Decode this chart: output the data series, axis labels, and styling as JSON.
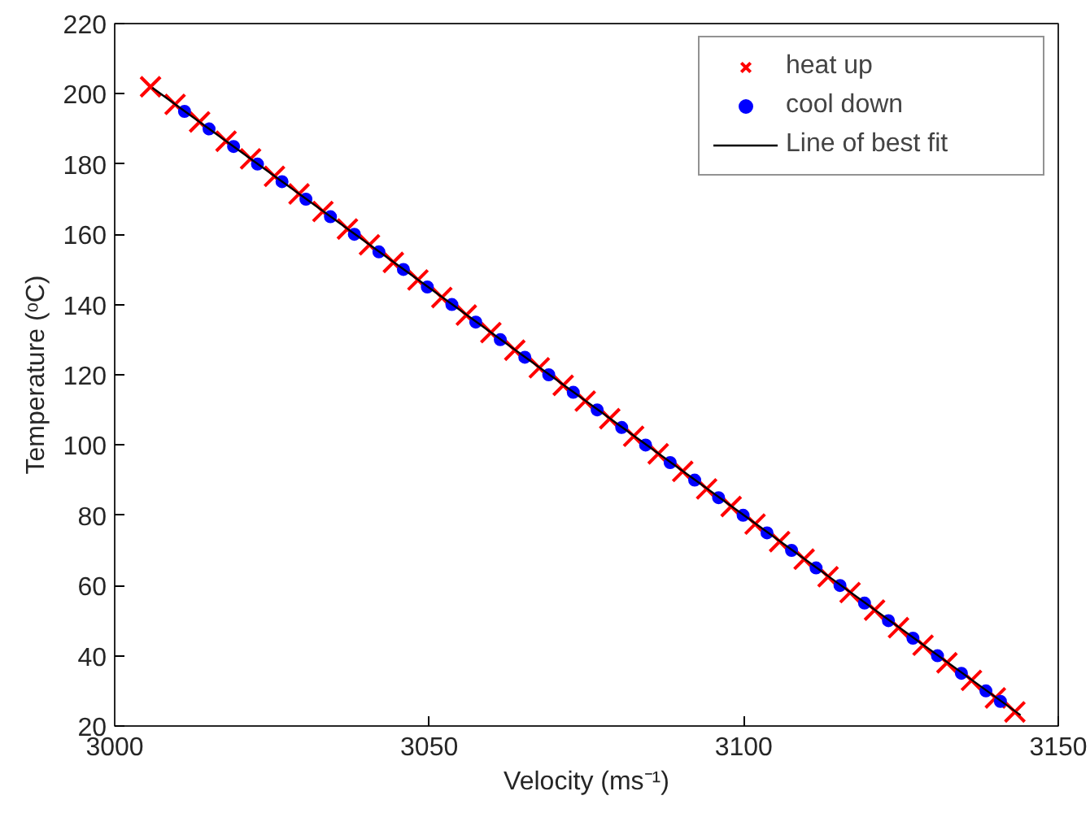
{
  "chart_data": {
    "type": "scatter",
    "xlabel": "Velocity (ms⁻¹)",
    "ylabel": "Temperature (ᵒC)",
    "xlim": [
      3000,
      3150
    ],
    "ylim": [
      20,
      220
    ],
    "xticks": [
      3000,
      3050,
      3100,
      3150
    ],
    "yticks": [
      20,
      40,
      60,
      80,
      100,
      120,
      140,
      160,
      180,
      200,
      220
    ],
    "grid": false,
    "legend": "top right",
    "series": [
      {
        "name": "heat up",
        "color": "#ff0000",
        "marker": "cross",
        "x": [
          3005.7,
          3009.6,
          3013.5,
          3017.7,
          3021.6,
          3025.4,
          3029.3,
          3033.1,
          3037.0,
          3040.5,
          3044.3,
          3048.2,
          3052.0,
          3055.9,
          3059.8,
          3063.6,
          3067.5,
          3071.3,
          3074.8,
          3078.7,
          3082.5,
          3086.4,
          3090.3,
          3094.1,
          3098.0,
          3101.8,
          3105.7,
          3109.6,
          3113.4,
          3116.9,
          3120.8,
          3124.6,
          3128.5,
          3132.3,
          3136.2,
          3140.0,
          3143.1
        ],
        "values": [
          202,
          197,
          192,
          186.5,
          181.5,
          176.5,
          171.5,
          166.5,
          161.5,
          157,
          152,
          147,
          142,
          137,
          132,
          127,
          122,
          117,
          112.5,
          107.5,
          102.5,
          97.5,
          92.5,
          87.5,
          82.5,
          77.5,
          72.5,
          67.5,
          62.5,
          58,
          53,
          48,
          43,
          38,
          33,
          28,
          24
        ]
      },
      {
        "name": "cool down",
        "color": "#0000ff",
        "marker": "circle",
        "x": [
          3011.1,
          3015.0,
          3018.9,
          3022.7,
          3026.6,
          3030.4,
          3034.3,
          3038.1,
          3042.0,
          3045.9,
          3049.7,
          3053.6,
          3057.4,
          3061.3,
          3065.2,
          3069.0,
          3072.9,
          3076.7,
          3080.6,
          3084.4,
          3088.3,
          3092.2,
          3096.0,
          3099.9,
          3103.7,
          3107.6,
          3111.5,
          3115.3,
          3119.2,
          3123.0,
          3126.9,
          3130.8,
          3134.6,
          3138.5,
          3140.8
        ],
        "values": [
          195,
          190,
          185,
          180,
          175,
          170,
          165,
          160,
          155,
          150,
          145,
          140,
          135,
          130,
          125,
          120,
          115,
          110,
          105,
          100,
          95,
          90,
          85,
          80,
          75,
          70,
          65,
          60,
          55,
          50,
          45,
          40,
          35,
          30,
          27
        ]
      },
      {
        "name": "Line of best fit",
        "type": "line",
        "color": "#000000",
        "marker": "none",
        "line_style": "solid",
        "x": [
          3006,
          3144
        ],
        "values": [
          201.7,
          23.1
        ]
      }
    ]
  }
}
